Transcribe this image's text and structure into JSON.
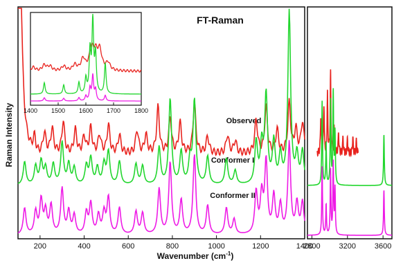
{
  "chart_data": {
    "type": "line",
    "title": "FT-Raman",
    "xlabel": "Wavenumber (cm",
    "xlabel_sup": "-1",
    "xlabel_close": ")",
    "ylabel": "Raman Intensity",
    "grid": false,
    "panels": [
      {
        "xlim": [
          100,
          1400
        ],
        "ticks": [
          200,
          400,
          600,
          800,
          1000,
          1200,
          1400
        ]
      },
      {
        "xlim": [
          2750,
          3700
        ],
        "ticks": [
          2800,
          3200,
          3600
        ]
      }
    ],
    "series": [
      {
        "name": "Observed",
        "color": "#e8231e",
        "peaks": [
          [
            113,
            1.0
          ],
          [
            175,
            0.18
          ],
          [
            220,
            0.25
          ],
          [
            255,
            0.3
          ],
          [
            305,
            0.38
          ],
          [
            360,
            0.28
          ],
          [
            400,
            0.2
          ],
          [
            430,
            0.3
          ],
          [
            470,
            0.22
          ],
          [
            510,
            0.34
          ],
          [
            560,
            0.22
          ],
          [
            640,
            0.28
          ],
          [
            680,
            0.22
          ],
          [
            735,
            0.55
          ],
          [
            790,
            0.42
          ],
          [
            835,
            0.36
          ],
          [
            900,
            0.6
          ],
          [
            960,
            0.2
          ],
          [
            1050,
            0.22
          ],
          [
            1085,
            0.15
          ],
          [
            1180,
            0.4
          ],
          [
            1225,
            0.55
          ],
          [
            1275,
            0.28
          ],
          [
            1330,
            0.6
          ],
          [
            1360,
            0.28
          ],
          [
            1390,
            0.38
          ],
          [
            2900,
            0.45
          ],
          [
            2935,
            0.58
          ],
          [
            2975,
            0.7
          ],
          [
            3010,
            0.95
          ],
          [
            3050,
            0.35
          ],
          [
            3100,
            0.25
          ],
          [
            3150,
            0.2
          ],
          [
            3200,
            0.18
          ],
          [
            3260,
            0.2
          ],
          [
            3300,
            0.15
          ]
        ]
      },
      {
        "name": "Conformer I",
        "color": "#22d62e",
        "peaks": [
          [
            130,
            0.25
          ],
          [
            180,
            0.2
          ],
          [
            205,
            0.25
          ],
          [
            225,
            0.18
          ],
          [
            260,
            0.22
          ],
          [
            300,
            0.45
          ],
          [
            330,
            0.22
          ],
          [
            355,
            0.18
          ],
          [
            410,
            0.2
          ],
          [
            430,
            0.28
          ],
          [
            460,
            0.18
          ],
          [
            490,
            0.22
          ],
          [
            510,
            0.35
          ],
          [
            560,
            0.25
          ],
          [
            635,
            0.22
          ],
          [
            665,
            0.2
          ],
          [
            740,
            0.4
          ],
          [
            790,
            0.92
          ],
          [
            840,
            0.35
          ],
          [
            880,
            0.25
          ],
          [
            900,
            0.9
          ],
          [
            960,
            0.3
          ],
          [
            1045,
            0.28
          ],
          [
            1085,
            0.15
          ],
          [
            1180,
            0.45
          ],
          [
            1205,
            0.4
          ],
          [
            1225,
            0.95
          ],
          [
            1260,
            0.45
          ],
          [
            1290,
            0.3
          ],
          [
            1330,
            1.85
          ],
          [
            1365,
            0.3
          ],
          [
            1390,
            0.35
          ],
          [
            2915,
            0.9
          ],
          [
            2960,
            0.45
          ],
          [
            3010,
            0.9
          ],
          [
            3040,
            1.0
          ],
          [
            3060,
            0.55
          ],
          [
            3610,
            0.55
          ]
        ]
      },
      {
        "name": "Conformer II",
        "color": "#ee1be6",
        "peaks": [
          [
            130,
            0.35
          ],
          [
            180,
            0.3
          ],
          [
            205,
            0.45
          ],
          [
            225,
            0.3
          ],
          [
            250,
            0.38
          ],
          [
            300,
            0.6
          ],
          [
            330,
            0.3
          ],
          [
            355,
            0.25
          ],
          [
            410,
            0.28
          ],
          [
            430,
            0.4
          ],
          [
            465,
            0.25
          ],
          [
            490,
            0.28
          ],
          [
            510,
            0.48
          ],
          [
            560,
            0.35
          ],
          [
            635,
            0.3
          ],
          [
            665,
            0.28
          ],
          [
            740,
            0.6
          ],
          [
            790,
            0.95
          ],
          [
            840,
            0.45
          ],
          [
            900,
            1.05
          ],
          [
            960,
            0.38
          ],
          [
            1045,
            0.35
          ],
          [
            1080,
            0.2
          ],
          [
            1180,
            0.55
          ],
          [
            1205,
            0.5
          ],
          [
            1225,
            0.95
          ],
          [
            1260,
            0.5
          ],
          [
            1290,
            0.38
          ],
          [
            1330,
            1.2
          ],
          [
            1365,
            0.4
          ],
          [
            1390,
            0.42
          ],
          [
            2915,
            0.9
          ],
          [
            2960,
            0.4
          ],
          [
            3010,
            0.85
          ],
          [
            3040,
            0.95
          ],
          [
            3060,
            0.6
          ],
          [
            3610,
            0.6
          ]
        ]
      }
    ],
    "inset": {
      "xlim": [
        1400,
        1800
      ],
      "ticks": [
        1400,
        1500,
        1600,
        1700,
        1800
      ],
      "series": [
        {
          "name": "Observed",
          "peaks": [
            [
              1410,
              0.1
            ],
            [
              1450,
              0.15
            ],
            [
              1470,
              0.12
            ],
            [
              1520,
              0.12
            ],
            [
              1560,
              0.15
            ],
            [
              1590,
              0.3
            ],
            [
              1620,
              0.55
            ],
            [
              1635,
              0.4
            ],
            [
              1650,
              0.5
            ],
            [
              1680,
              0.2
            ]
          ]
        },
        {
          "name": "Conformer I",
          "peaks": [
            [
              1450,
              0.15
            ],
            [
              1520,
              0.12
            ],
            [
              1575,
              0.15
            ],
            [
              1600,
              0.2
            ],
            [
              1615,
              0.55
            ],
            [
              1625,
              0.95
            ],
            [
              1635,
              0.5
            ],
            [
              1670,
              0.4
            ]
          ]
        },
        {
          "name": "Conformer II",
          "peaks": [
            [
              1450,
              0.12
            ],
            [
              1520,
              0.1
            ],
            [
              1575,
              0.12
            ],
            [
              1600,
              0.18
            ],
            [
              1615,
              0.45
            ],
            [
              1625,
              0.9
            ],
            [
              1635,
              0.4
            ],
            [
              1670,
              0.2
            ]
          ]
        }
      ]
    },
    "series_labels": [
      "Observed",
      "Conformer I",
      "Conformer II"
    ]
  }
}
